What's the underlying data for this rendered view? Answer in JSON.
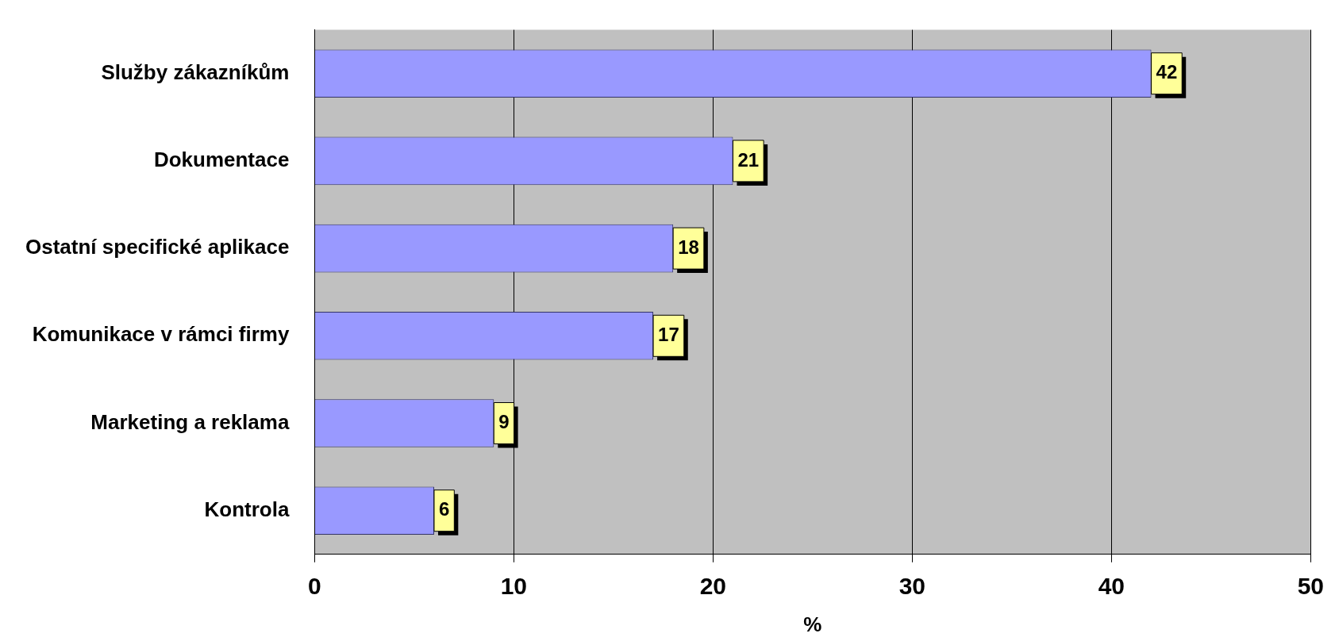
{
  "chart_data": {
    "type": "bar",
    "orientation": "horizontal",
    "xlabel": "%",
    "categories": [
      "Služby zákazníkům",
      "Dokumentace",
      "Ostatní specifické aplikace",
      "Komunikace v rámci firmy",
      "Marketing a reklama",
      "Kontrola"
    ],
    "values": [
      42,
      21,
      18,
      17,
      9,
      6
    ],
    "color": "#9999ff",
    "xlim": [
      0,
      50
    ],
    "xticks": [
      0,
      10,
      20,
      30,
      40,
      50
    ],
    "grid": "x",
    "legend": false,
    "data_labels": true
  }
}
